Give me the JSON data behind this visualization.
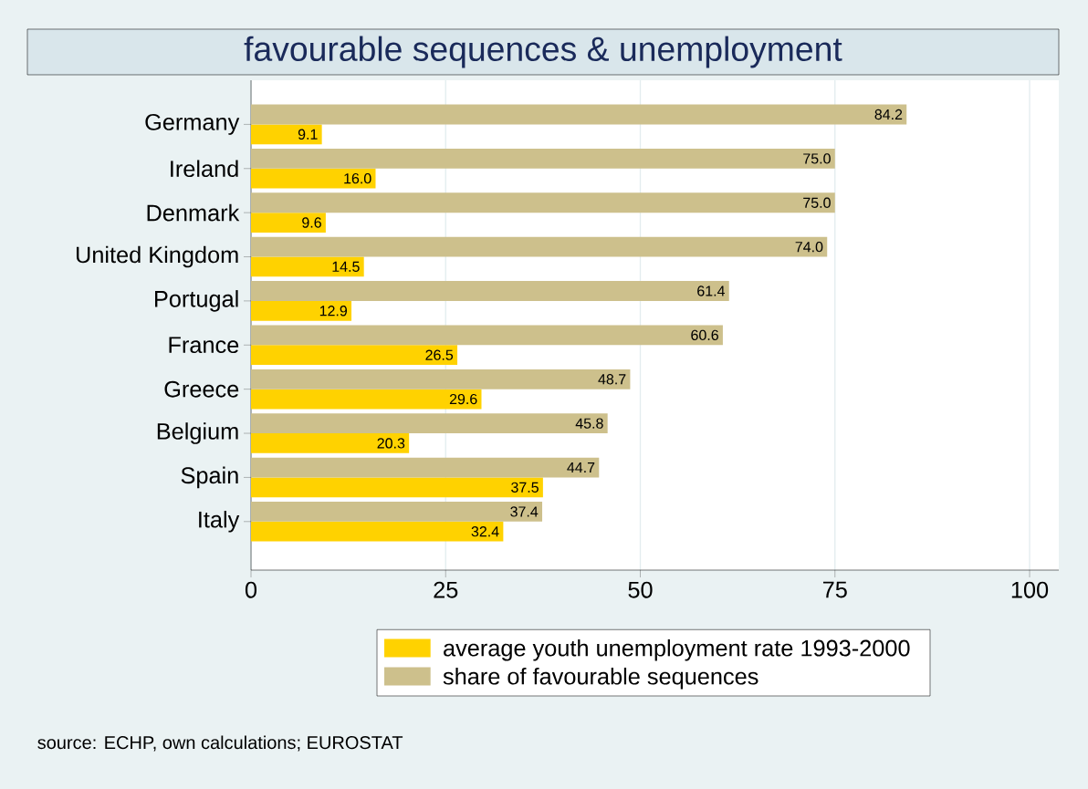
{
  "chart_data": {
    "type": "bar",
    "orientation": "horizontal",
    "title": "favourable sequences & unemployment",
    "categories": [
      "Germany",
      "Ireland",
      "Denmark",
      "United Kingdom",
      "Portugal",
      "France",
      "Greece",
      "Belgium",
      "Spain",
      "Italy"
    ],
    "series": [
      {
        "name": "average youth unemployment rate 1993-2000",
        "color": "#ffd200",
        "values": [
          9.1,
          16.0,
          9.6,
          14.5,
          12.9,
          26.5,
          29.6,
          20.3,
          37.5,
          32.4
        ],
        "value_labels": [
          "9.1",
          "16.0",
          "9.6",
          "14.5",
          "12.9",
          "26.5",
          "29.6",
          "20.3",
          "37.5",
          "32.4"
        ]
      },
      {
        "name": "share of favourable sequences",
        "color": "#cdc08c",
        "values": [
          84.2,
          75.0,
          75.0,
          74.0,
          61.4,
          60.6,
          48.7,
          45.8,
          44.7,
          37.4
        ],
        "value_labels": [
          "84.2",
          "75.0",
          "75.0",
          "74.0",
          "61.4",
          "60.6",
          "48.7",
          "45.8",
          "44.7",
          "37.4"
        ]
      }
    ],
    "xlim": [
      0,
      103.75
    ],
    "xticks": [
      0,
      25,
      50,
      75,
      100
    ],
    "grid": "x",
    "legend": "bottom",
    "annotations": [
      "source: ECHP, own calculations; EUROSTAT"
    ]
  }
}
